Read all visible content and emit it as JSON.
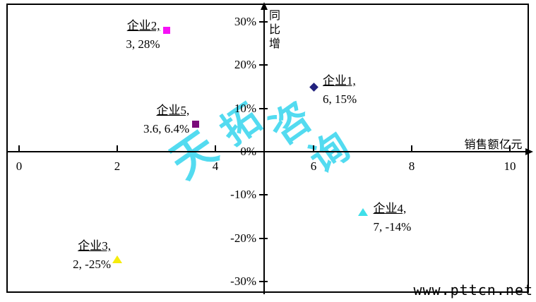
{
  "chart_data": {
    "type": "scatter",
    "title": "",
    "xlabel": "销售额亿元",
    "ylabel": "同比增",
    "xlim": [
      0,
      10
    ],
    "ylim_percent": [
      -30,
      30
    ],
    "x_ticks": [
      0,
      2,
      4,
      6,
      8,
      10
    ],
    "y_ticks_percent": [
      30,
      20,
      10,
      0,
      -10,
      -20,
      -30
    ],
    "y_tick_labels": [
      "30%",
      "20%",
      "10%",
      "0%",
      "-10%",
      "-20%",
      "-30%"
    ],
    "grid": false,
    "axis_color": "#000000",
    "points": [
      {
        "name": "企业1",
        "x": 6,
        "y_percent": 15,
        "marker": "diamond",
        "color": "#22227e",
        "label_lines": [
          "企业1,",
          "6, 15%"
        ],
        "label_align": "left",
        "label_offset": [
          13,
          -21
        ]
      },
      {
        "name": "企业2",
        "x": 3,
        "y_percent": 28,
        "marker": "square",
        "color": "#f611f6",
        "label_lines": [
          "企业2,",
          "3, 28%"
        ],
        "label_align": "right",
        "label_offset": [
          -9,
          -19
        ]
      },
      {
        "name": "企业3",
        "x": 2,
        "y_percent": -25,
        "marker": "triangle",
        "color": "#f6ec0c",
        "label_lines": [
          "企业3,",
          "2, -25%"
        ],
        "label_align": "right",
        "label_offset": [
          -9,
          -32
        ]
      },
      {
        "name": "企业4",
        "x": 7,
        "y_percent": -14,
        "marker": "triangle",
        "color": "#3edfe9",
        "label_lines": [
          "企业4,",
          "7, -14%"
        ],
        "label_align": "left",
        "label_offset": [
          15,
          -18
        ]
      },
      {
        "name": "企业5",
        "x": 3.6,
        "y_percent": 6.4,
        "marker": "square",
        "color": "#7a0a7a",
        "label_lines": [
          "企业5,",
          "3.6, 6.4%"
        ],
        "label_align": "right",
        "label_offset": [
          -9,
          -32
        ]
      }
    ]
  },
  "watermark": {
    "text": "天拓咨询",
    "color": "#45d9ef"
  },
  "footer": {
    "site_text": "www.pttcn.net"
  }
}
